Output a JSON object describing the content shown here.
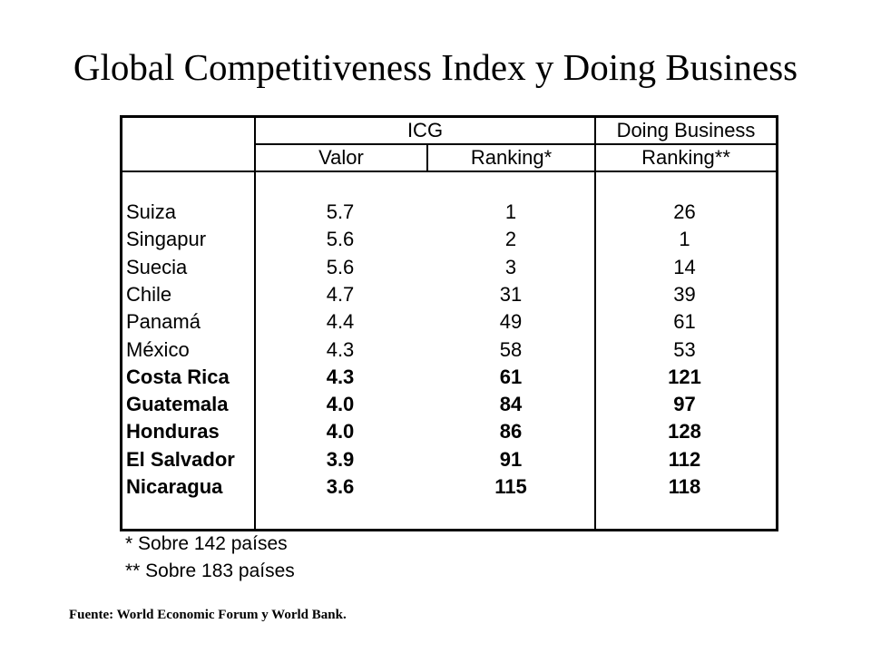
{
  "title": "Global Competitiveness Index y Doing Business",
  "table": {
    "group_headers": {
      "icg": "ICG",
      "doing_business": "Doing Business"
    },
    "column_headers": {
      "valor": "Valor",
      "ranking_icg": "Ranking*",
      "ranking_db": "Ranking**"
    },
    "rows": [
      {
        "country": "Suiza",
        "valor": "5.7",
        "ranking_icg": "1",
        "ranking_db": "26",
        "bold": false
      },
      {
        "country": "Singapur",
        "valor": "5.6",
        "ranking_icg": "2",
        "ranking_db": "1",
        "bold": false
      },
      {
        "country": "Suecia",
        "valor": "5.6",
        "ranking_icg": "3",
        "ranking_db": "14",
        "bold": false
      },
      {
        "country": "Chile",
        "valor": "4.7",
        "ranking_icg": "31",
        "ranking_db": "39",
        "bold": false
      },
      {
        "country": "Panamá",
        "valor": "4.4",
        "ranking_icg": "49",
        "ranking_db": "61",
        "bold": false
      },
      {
        "country": "México",
        "valor": "4.3",
        "ranking_icg": "58",
        "ranking_db": "53",
        "bold": false
      },
      {
        "country": "Costa Rica",
        "valor": "4.3",
        "ranking_icg": "61",
        "ranking_db": "121",
        "bold": true
      },
      {
        "country": "Guatemala",
        "valor": "4.0",
        "ranking_icg": "84",
        "ranking_db": "97",
        "bold": true
      },
      {
        "country": "Honduras",
        "valor": "4.0",
        "ranking_icg": "86",
        "ranking_db": "128",
        "bold": true
      },
      {
        "country": "El Salvador",
        "valor": "3.9",
        "ranking_icg": "91",
        "ranking_db": "112",
        "bold": true
      },
      {
        "country": "Nicaragua",
        "valor": "3.6",
        "ranking_icg": "115",
        "ranking_db": "118",
        "bold": true
      }
    ]
  },
  "footnotes": {
    "first": "* Sobre 142 países",
    "second": "** Sobre 183 países"
  },
  "source": "Fuente: World Economic Forum y World Bank."
}
